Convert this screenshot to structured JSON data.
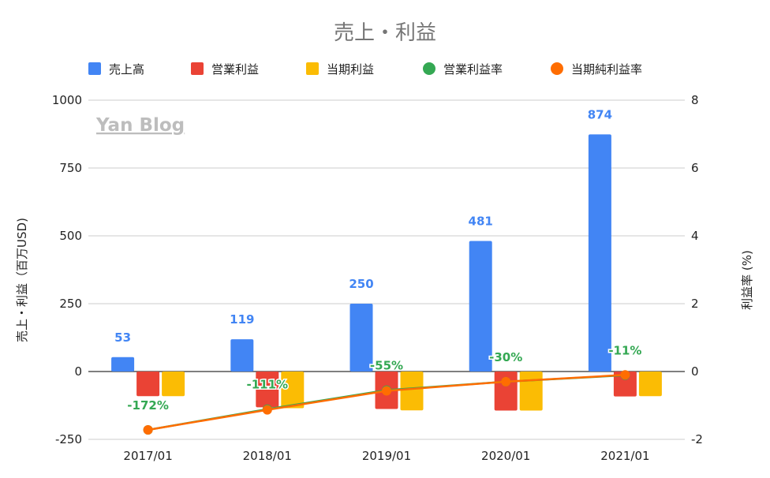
{
  "chart_data": {
    "type": "bar",
    "title": "売上・利益",
    "categories": [
      "2017/01",
      "2018/01",
      "2019/01",
      "2020/01",
      "2021/01"
    ],
    "series": [
      {
        "name": "売上高",
        "type": "bar",
        "axis": "left",
        "color": "#4285f4",
        "values": [
          53,
          119,
          250,
          481,
          874
        ],
        "labels": [
          "53",
          "119",
          "250",
          "481",
          "874"
        ]
      },
      {
        "name": "営業利益",
        "type": "bar",
        "axis": "left",
        "color": "#ea4335",
        "values": [
          -91,
          -132,
          -138,
          -144,
          -92
        ]
      },
      {
        "name": "当期利益",
        "type": "bar",
        "axis": "left",
        "color": "#fbbc04",
        "values": [
          -91,
          -135,
          -143,
          -144,
          -91
        ]
      },
      {
        "name": "営業利益率",
        "type": "line",
        "axis": "right",
        "color": "#34a853",
        "values": [
          -1.72,
          -1.11,
          -0.55,
          -0.3,
          -0.11
        ],
        "labels": [
          "-172%",
          "-111%",
          "-55%",
          "-30%",
          "-11%"
        ]
      },
      {
        "name": "当期純利益率",
        "type": "line",
        "axis": "right",
        "color": "#ff6d01",
        "values": [
          -1.72,
          -1.13,
          -0.57,
          -0.3,
          -0.1
        ]
      }
    ],
    "ylabel": "売上・利益（百万USD)",
    "y2label": "利益率 (%)",
    "ylim": [
      -250,
      1000
    ],
    "yticks": [
      "-250",
      "0",
      "250",
      "500",
      "750",
      "1000"
    ],
    "y2lim": [
      -2,
      8
    ],
    "y2ticks": [
      "-2",
      "0",
      "2",
      "4",
      "6",
      "8"
    ],
    "legend_position": "top",
    "grid": "horizontal",
    "watermark": "Yan Blog"
  }
}
